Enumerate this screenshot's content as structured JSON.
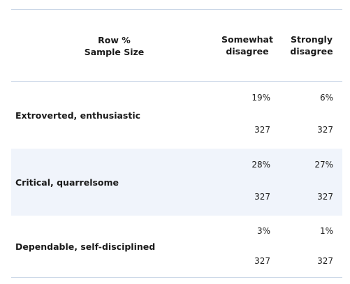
{
  "header": {
    "row_label_line1": "Row %",
    "row_label_line2": "Sample Size",
    "columns": [
      {
        "line1": "Somewhat",
        "line2": "disagree"
      },
      {
        "line1": "Strongly",
        "line2": "disagree"
      }
    ]
  },
  "rows": [
    {
      "label": "Extroverted, enthusiastic",
      "pct": [
        "19%",
        "6%"
      ],
      "n": [
        "327",
        "327"
      ]
    },
    {
      "label": "Critical, quarrelsome",
      "pct": [
        "28%",
        "27%"
      ],
      "n": [
        "327",
        "327"
      ]
    },
    {
      "label": "Dependable, self-disciplined",
      "pct": [
        "3%",
        "1%"
      ],
      "n": [
        "327",
        "327"
      ]
    }
  ],
  "colors": {
    "rule": "#c9d6e6",
    "shaded_row": "#f0f4fb"
  }
}
